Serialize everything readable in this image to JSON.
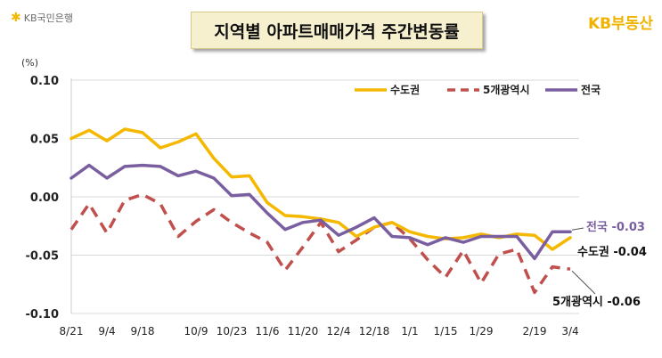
{
  "header": {
    "bank_logo_text": "KB국민은행",
    "title": "지역별 아파트매매가격 주간변동률",
    "brand_logo_text": "KB부동산"
  },
  "colors": {
    "capital": "#f5b800",
    "metro": "#c0504d",
    "national": "#7a5fa0",
    "national_label": "#7a5fa0",
    "grid": "#d9d9d9"
  },
  "chart_data": {
    "type": "line",
    "unit_label": "(%)",
    "ylim": [
      -0.1,
      0.1
    ],
    "yticks": [
      "0.10",
      "0.05",
      "0.00",
      "-0.05",
      "-0.10"
    ],
    "ytick_values": [
      0.1,
      0.05,
      0.0,
      -0.05,
      -0.1
    ],
    "grid": "horizontal",
    "legend_position": "top-right",
    "x": [
      "8/21",
      "8/28",
      "9/4",
      "9/11",
      "9/18",
      "9/25",
      "10/2",
      "10/9",
      "10/16",
      "10/23",
      "10/30",
      "11/6",
      "11/13",
      "11/20",
      "11/27",
      "12/4",
      "12/11",
      "12/18",
      "12/25",
      "1/1",
      "1/8",
      "1/15",
      "1/22",
      "1/29",
      "2/5",
      "2/12",
      "2/19",
      "2/26",
      "3/4"
    ],
    "xtick_labels": [
      "8/21",
      "9/4",
      "9/18",
      "10/9",
      "10/23",
      "11/6",
      "11/20",
      "12/4",
      "12/18",
      "1/1",
      "1/15",
      "1/29",
      "2/19",
      "3/4"
    ],
    "series": [
      {
        "name": "수도권",
        "key": "capital",
        "style": "solid",
        "values": [
          0.05,
          0.057,
          0.048,
          0.058,
          0.055,
          0.042,
          0.047,
          0.054,
          0.033,
          0.017,
          0.018,
          -0.005,
          -0.016,
          -0.017,
          -0.019,
          -0.022,
          -0.034,
          -0.026,
          -0.022,
          -0.03,
          -0.034,
          -0.036,
          -0.035,
          -0.032,
          -0.035,
          -0.032,
          -0.033,
          -0.045,
          -0.035
        ]
      },
      {
        "name": "5개광역시",
        "key": "metro",
        "style": "dashed",
        "values": [
          -0.028,
          -0.006,
          -0.031,
          -0.003,
          0.002,
          -0.006,
          -0.034,
          -0.021,
          -0.011,
          -0.022,
          -0.031,
          -0.039,
          -0.063,
          -0.043,
          -0.022,
          -0.047,
          -0.037,
          -0.026,
          -0.022,
          -0.036,
          -0.054,
          -0.069,
          -0.046,
          -0.074,
          -0.049,
          -0.045,
          -0.082,
          -0.06,
          -0.062
        ]
      },
      {
        "name": "전국",
        "key": "national",
        "style": "solid",
        "values": [
          0.016,
          0.027,
          0.016,
          0.026,
          0.027,
          0.026,
          0.018,
          0.022,
          0.016,
          0.001,
          0.002,
          -0.014,
          -0.028,
          -0.022,
          -0.02,
          -0.033,
          -0.026,
          -0.018,
          -0.034,
          -0.035,
          -0.041,
          -0.035,
          -0.039,
          -0.034,
          -0.034,
          -0.034,
          -0.053,
          -0.03,
          -0.03
        ]
      }
    ],
    "end_labels": {
      "national": "전국 -0.03",
      "capital": "수도권  -0.04",
      "metro": "5개광역시  -0.06"
    }
  }
}
